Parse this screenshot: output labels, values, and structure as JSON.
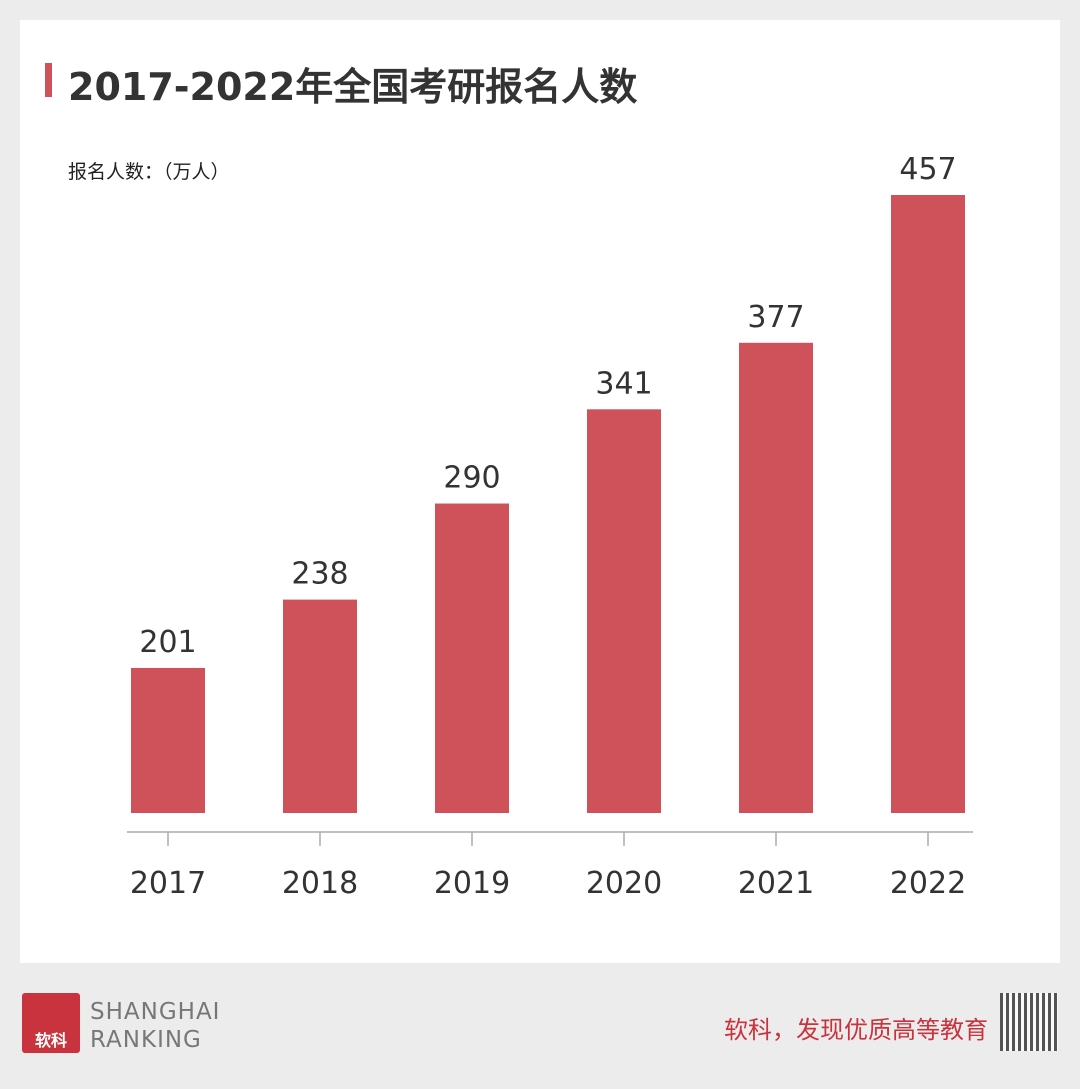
{
  "title": "2017-2022年全国考研报名人数",
  "unit_label": "报名人数：（万人）",
  "footer": {
    "logo_text": "软科",
    "brand_line1": "SHANGHAI",
    "brand_line2": "RANKING",
    "slogan": "软科，发现优质高等教育"
  },
  "colors": {
    "bar": "#cf515a",
    "accent": "#c9333d"
  },
  "chart_data": {
    "type": "bar",
    "title": "2017-2022年全国考研报名人数",
    "ylabel": "报名人数：（万人）",
    "categories": [
      "2017",
      "2018",
      "2019",
      "2020",
      "2021",
      "2022"
    ],
    "values": [
      201,
      238,
      290,
      341,
      377,
      457
    ],
    "grid": false,
    "data_labels": true
  }
}
